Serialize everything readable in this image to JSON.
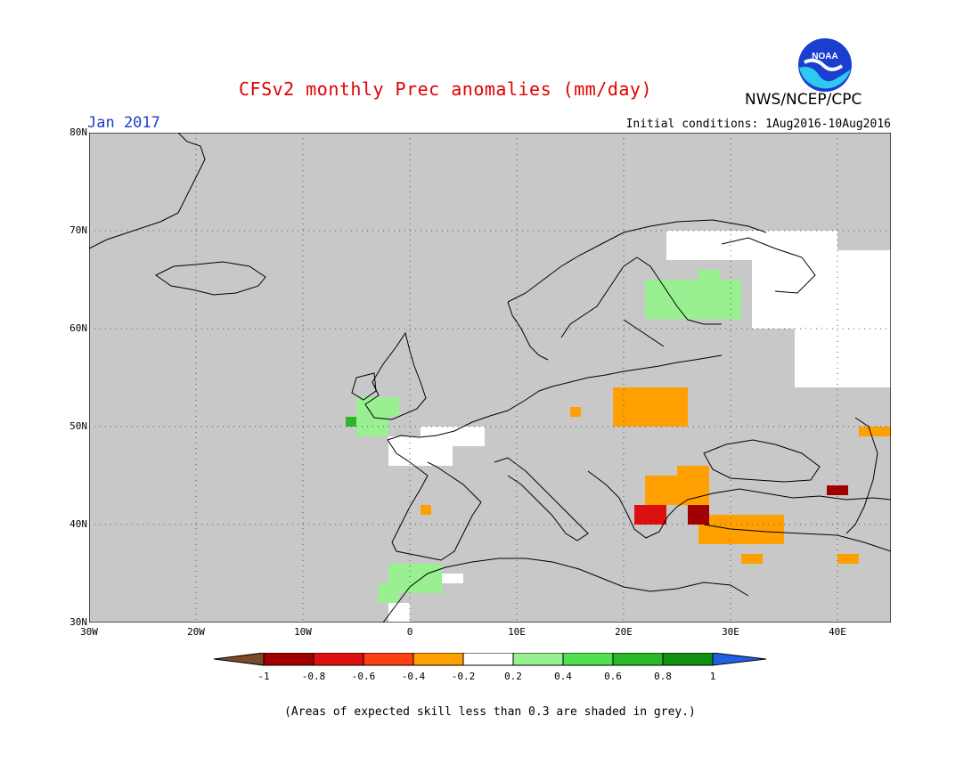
{
  "title": "CFSv2 monthly Prec anomalies (mm/day)",
  "org": "NWS/NCEP/CPC",
  "logo_text": "NOAA",
  "period": "Jan 2017",
  "initial_conditions": "Initial conditions: 1Aug2016-10Aug2016",
  "footnote": "(Areas of expected skill less than 0.3 are shaded in grey.)",
  "map": {
    "lon_range": [
      -30,
      45
    ],
    "lat_range": [
      30,
      80
    ],
    "lon_ticks": [
      "30W",
      "20W",
      "10W",
      "0",
      "10E",
      "20E",
      "30E",
      "40E"
    ],
    "lat_ticks": [
      "80N",
      "70N",
      "60N",
      "50N",
      "40N",
      "30N"
    ],
    "background_color": "#c8c8c8",
    "grid": "dotted"
  },
  "colorbar": {
    "labels": [
      "-1",
      "-0.8",
      "-0.6",
      "-0.4",
      "-0.2",
      "0.2",
      "0.4",
      "0.6",
      "0.8",
      "1"
    ],
    "colors": [
      "#7a4a2a",
      "#a00000",
      "#dd1010",
      "#ff4010",
      "#ffa000",
      "#ffffff",
      "#98f090",
      "#50e050",
      "#28b828",
      "#109010",
      "#2060e0"
    ]
  },
  "anomaly_regions": [
    {
      "name": "north-russia-white",
      "color": "#ffffff",
      "cells": [
        [
          24,
          67,
          16,
          3
        ],
        [
          32,
          60,
          15,
          8
        ],
        [
          36,
          54,
          9,
          8
        ]
      ]
    },
    {
      "name": "finland-green",
      "color": "#98f090",
      "cells": [
        [
          22,
          61,
          9,
          4
        ],
        [
          27,
          64,
          2,
          2
        ]
      ]
    },
    {
      "name": "poland-orange",
      "color": "#ffa000",
      "cells": [
        [
          19,
          50,
          7,
          4
        ],
        [
          15,
          51,
          1,
          1
        ]
      ]
    },
    {
      "name": "uk-green",
      "color": "#98f090",
      "cells": [
        [
          -5,
          49,
          3,
          4
        ],
        [
          -3,
          51,
          2,
          2
        ]
      ]
    },
    {
      "name": "uk-darkgreen",
      "color": "#28b828",
      "cells": [
        [
          -6,
          50,
          1,
          1
        ]
      ]
    },
    {
      "name": "france-white",
      "color": "#ffffff",
      "cells": [
        [
          -2,
          46,
          6,
          3
        ],
        [
          1,
          48,
          6,
          2
        ]
      ]
    },
    {
      "name": "balkans-orange",
      "color": "#ffa000",
      "cells": [
        [
          22,
          42,
          6,
          3
        ],
        [
          25,
          44,
          3,
          2
        ]
      ]
    },
    {
      "name": "greece-red",
      "color": "#dd1010",
      "cells": [
        [
          21,
          40,
          3,
          2
        ]
      ]
    },
    {
      "name": "turkey-orange",
      "color": "#ffa000",
      "cells": [
        [
          27,
          38,
          8,
          3
        ],
        [
          31,
          36,
          2,
          1
        ]
      ]
    },
    {
      "name": "turkey-darkred",
      "color": "#a00000",
      "cells": [
        [
          26,
          40,
          2,
          2
        ]
      ]
    },
    {
      "name": "caucasus-darkred",
      "color": "#a00000",
      "cells": [
        [
          39,
          43,
          2,
          1
        ]
      ]
    },
    {
      "name": "east-orange",
      "color": "#ffa000",
      "cells": [
        [
          42,
          49,
          3,
          1
        ],
        [
          40,
          36,
          2,
          1
        ]
      ]
    },
    {
      "name": "africa-green",
      "color": "#98f090",
      "cells": [
        [
          -2,
          33,
          5,
          3
        ],
        [
          -3,
          32,
          2,
          2
        ]
      ]
    },
    {
      "name": "africa-white",
      "color": "#ffffff",
      "cells": [
        [
          -2,
          30,
          2,
          2
        ],
        [
          3,
          34,
          2,
          1
        ]
      ]
    },
    {
      "name": "spain-orange",
      "color": "#ffa000",
      "cells": [
        [
          1,
          41,
          1,
          1
        ]
      ]
    }
  ]
}
